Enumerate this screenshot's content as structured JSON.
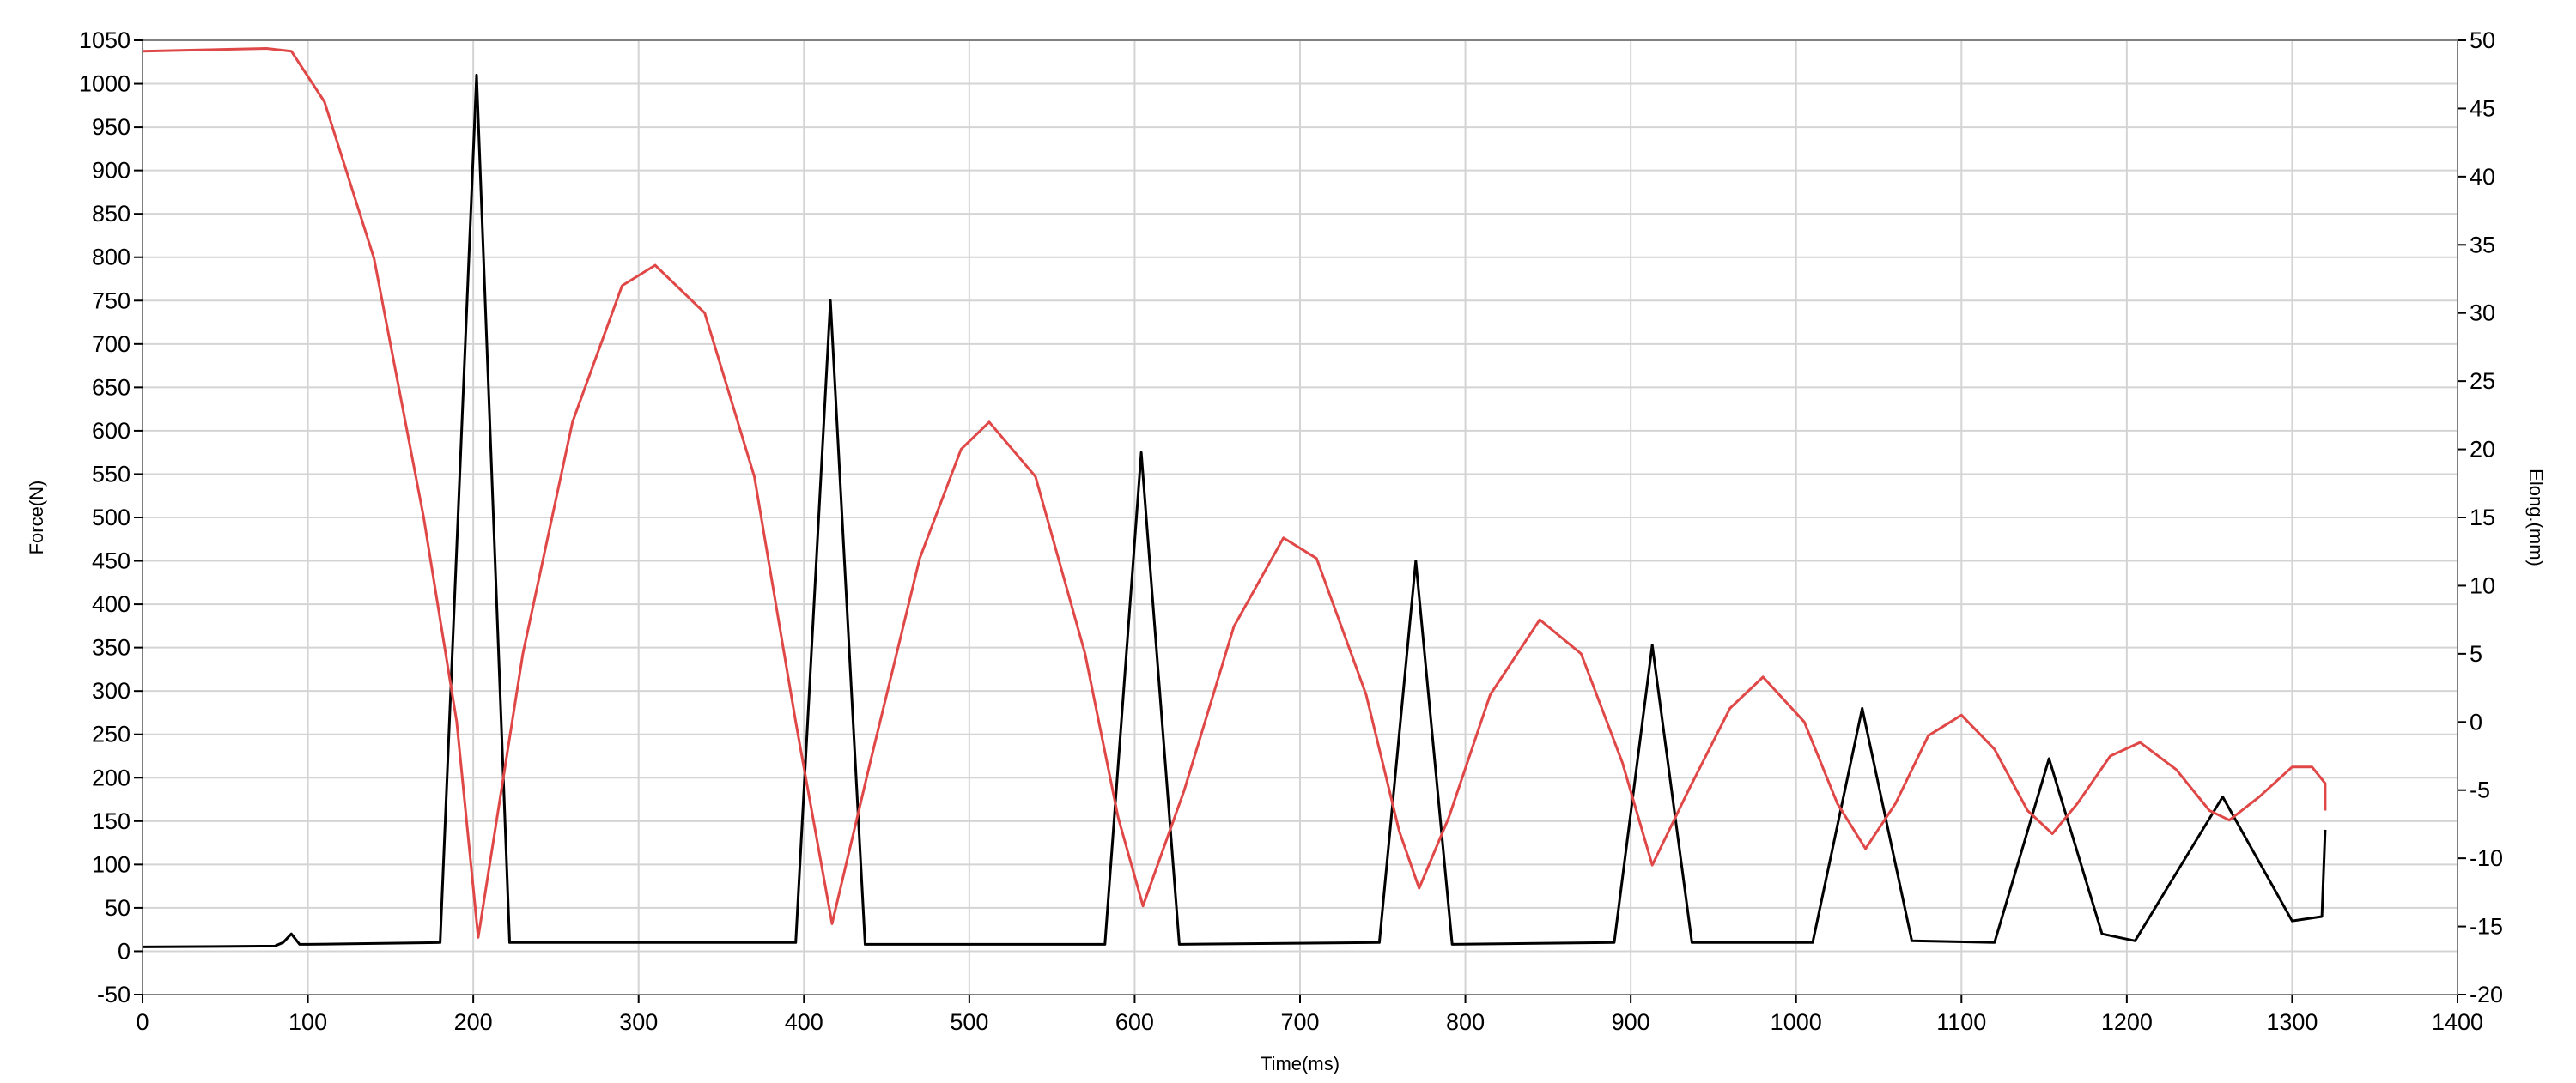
{
  "chart_data": {
    "type": "line",
    "title": "",
    "xlabel": "Time(ms)",
    "ylabel": "Force(N)",
    "y2label": "Elong.(mm)",
    "xlim": [
      0,
      1400
    ],
    "ylim": [
      -50,
      1050
    ],
    "y2lim": [
      -20,
      50
    ],
    "xticks": [
      0,
      100,
      200,
      300,
      400,
      500,
      600,
      700,
      800,
      900,
      1000,
      1100,
      1200,
      1300,
      1400
    ],
    "yticks": [
      -50,
      0,
      50,
      100,
      150,
      200,
      250,
      300,
      350,
      400,
      450,
      500,
      550,
      600,
      650,
      700,
      750,
      800,
      850,
      900,
      950,
      1000,
      1050
    ],
    "y2ticks": [
      -20,
      -15,
      -10,
      -5,
      0,
      5,
      10,
      15,
      20,
      25,
      30,
      35,
      40,
      45,
      50
    ],
    "grid": true,
    "legend": "none",
    "series": [
      {
        "axis": "left",
        "color": "#000000",
        "points": [
          [
            0,
            5
          ],
          [
            80,
            6
          ],
          [
            85,
            10
          ],
          [
            90,
            20
          ],
          [
            95,
            8
          ],
          [
            100,
            8
          ],
          [
            180,
            10
          ],
          [
            202,
            1010
          ],
          [
            222,
            10
          ],
          [
            395,
            10
          ],
          [
            416,
            750
          ],
          [
            437,
            8
          ],
          [
            582,
            8
          ],
          [
            604,
            575
          ],
          [
            627,
            8
          ],
          [
            748,
            10
          ],
          [
            770,
            450
          ],
          [
            792,
            8
          ],
          [
            890,
            10
          ],
          [
            913,
            353
          ],
          [
            937,
            10
          ],
          [
            1010,
            10
          ],
          [
            1040,
            280
          ],
          [
            1070,
            12
          ],
          [
            1120,
            10
          ],
          [
            1153,
            222
          ],
          [
            1185,
            20
          ],
          [
            1205,
            12
          ],
          [
            1258,
            178
          ],
          [
            1300,
            35
          ],
          [
            1318,
            40
          ],
          [
            1320,
            140
          ]
        ]
      },
      {
        "axis": "right",
        "color": "#e04848",
        "points": [
          [
            0,
            49.2
          ],
          [
            75,
            49.4
          ],
          [
            90,
            49.2
          ],
          [
            110,
            45.5
          ],
          [
            140,
            34
          ],
          [
            170,
            15
          ],
          [
            190,
            0
          ],
          [
            203,
            -15.8
          ],
          [
            230,
            5
          ],
          [
            260,
            22
          ],
          [
            290,
            32
          ],
          [
            310,
            33.5
          ],
          [
            340,
            30
          ],
          [
            370,
            18
          ],
          [
            395,
            0
          ],
          [
            417,
            -14.8
          ],
          [
            440,
            -3
          ],
          [
            470,
            12
          ],
          [
            495,
            20
          ],
          [
            512,
            22
          ],
          [
            540,
            18
          ],
          [
            570,
            5
          ],
          [
            590,
            -7
          ],
          [
            605,
            -13.5
          ],
          [
            630,
            -5
          ],
          [
            660,
            7
          ],
          [
            690,
            13.5
          ],
          [
            710,
            12
          ],
          [
            740,
            2
          ],
          [
            760,
            -8
          ],
          [
            772,
            -12.2
          ],
          [
            790,
            -7
          ],
          [
            815,
            2
          ],
          [
            845,
            7.5
          ],
          [
            870,
            5
          ],
          [
            895,
            -3
          ],
          [
            913,
            -10.5
          ],
          [
            935,
            -5
          ],
          [
            960,
            1
          ],
          [
            980,
            3.3
          ],
          [
            1005,
            0
          ],
          [
            1025,
            -6
          ],
          [
            1042,
            -9.3
          ],
          [
            1060,
            -6
          ],
          [
            1080,
            -1
          ],
          [
            1100,
            0.5
          ],
          [
            1120,
            -2
          ],
          [
            1140,
            -6.5
          ],
          [
            1155,
            -8.2
          ],
          [
            1170,
            -6
          ],
          [
            1190,
            -2.5
          ],
          [
            1208,
            -1.5
          ],
          [
            1230,
            -3.5
          ],
          [
            1250,
            -6.5
          ],
          [
            1262,
            -7.2
          ],
          [
            1280,
            -5.5
          ],
          [
            1300,
            -3.3
          ],
          [
            1312,
            -3.3
          ],
          [
            1320,
            -4.5
          ],
          [
            1320,
            -6.5
          ]
        ]
      }
    ]
  }
}
